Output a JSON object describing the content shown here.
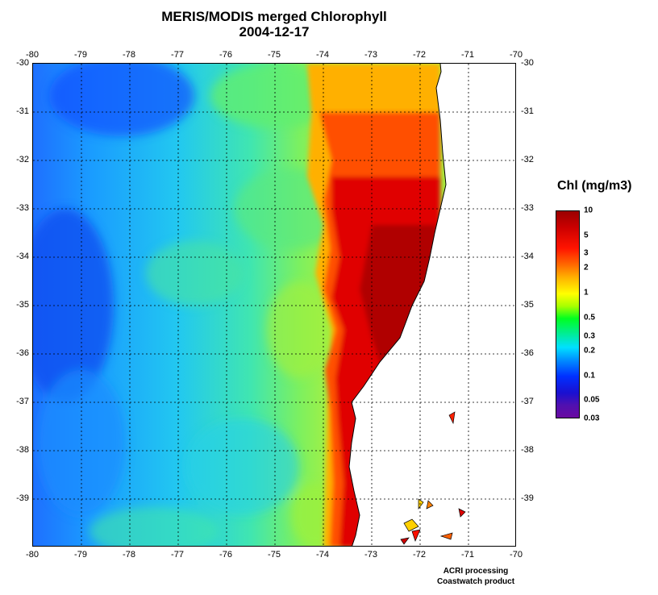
{
  "title_line1": "MERIS/MODIS merged Chlorophyll",
  "title_line2": "2004-12-17",
  "x_ticks": [
    "-80",
    "-79",
    "-78",
    "-77",
    "-76",
    "-75",
    "-74",
    "-73",
    "-72",
    "-71",
    "-70"
  ],
  "y_ticks": [
    "-30",
    "-31",
    "-32",
    "-33",
    "-34",
    "-35",
    "-36",
    "-37",
    "-38",
    "-39"
  ],
  "lon_range": [
    -80,
    -70
  ],
  "lat_range": [
    -40,
    -30
  ],
  "grid": true,
  "legend": {
    "title": "Chl (mg/m3)",
    "labels": [
      "10",
      "5",
      "3",
      "2",
      "1",
      "0.5",
      "0.3",
      "0.2",
      "0.1",
      "0.05",
      "0.03"
    ],
    "scale": "log",
    "colors": {
      "high": "#9a0000",
      "mid": "#00ff20",
      "low": "#6a0aa0"
    }
  },
  "credit_line1": "ACRI processing",
  "credit_line2": "Coastwatch product",
  "colors": {
    "ocean_offshore": "#1aa0ff",
    "ocean_mid": "#30e0a0",
    "coastal_high": "#c80000",
    "land": "#ffffff"
  }
}
